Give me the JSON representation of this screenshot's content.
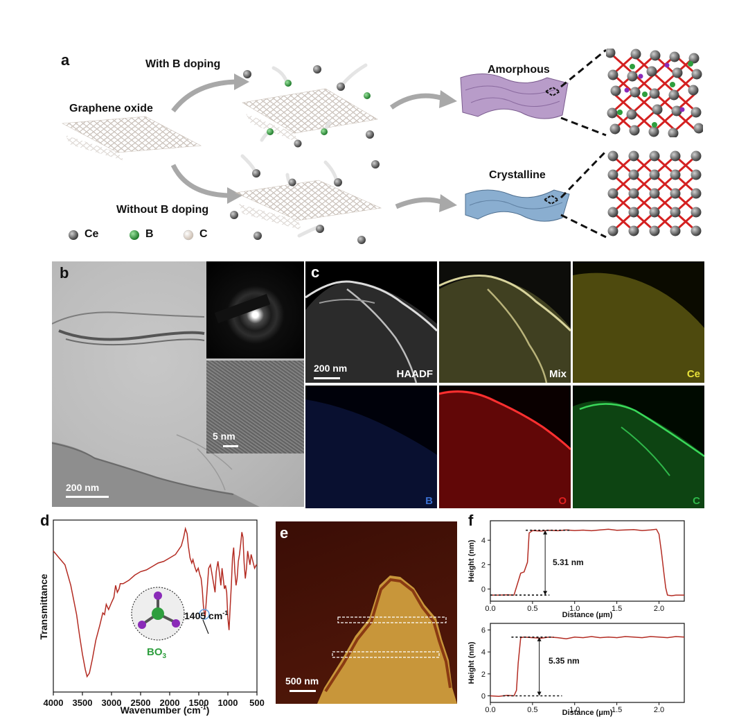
{
  "panel_a": {
    "label": "a",
    "with_b_doping": "With B doping",
    "without_b_doping": "Without B doping",
    "graphene_oxide": "Graphene oxide",
    "amorphous": "Amorphous",
    "crystalline": "Crystalline",
    "legend": [
      {
        "symbol": "Ce",
        "color": "#6b6b6b"
      },
      {
        "symbol": "B",
        "color": "#2e9e3e"
      },
      {
        "symbol": "C",
        "color": "#efe6dc"
      }
    ],
    "colors": {
      "amorphous_sheet": "#b89cc9",
      "crystalline_sheet": "#8aaed0"
    }
  },
  "panel_b": {
    "label": "b",
    "scalebar_main": "200 nm",
    "scalebar_inset": "5 nm"
  },
  "panel_c": {
    "label": "c",
    "scalebar": "200 nm",
    "maps": [
      {
        "name": "HAADF",
        "color": "#ffffff"
      },
      {
        "name": "Mix",
        "color": "#ffffff"
      },
      {
        "name": "Ce",
        "color": "#e8e23a"
      },
      {
        "name": "B",
        "color": "#3a6fd0"
      },
      {
        "name": "O",
        "color": "#e02020"
      },
      {
        "name": "C",
        "color": "#2fb84a"
      }
    ]
  },
  "panel_d": {
    "label": "d",
    "annotation": "1405 cm",
    "annotation_sup": "-1",
    "molecule_label": "BO",
    "molecule_sub": "3",
    "chart_data": {
      "type": "line",
      "xlabel": "Wavenumber (cm",
      "xlabel_sup": "-1",
      "xlabel_end": ")",
      "ylabel": "Transmittance",
      "xlim": [
        4000,
        500
      ],
      "xticks": [
        4000,
        3500,
        3000,
        2500,
        2000,
        1500,
        1000,
        500
      ],
      "series": [
        {
          "color": "#b32b22",
          "x": [
            4000,
            3900,
            3800,
            3700,
            3600,
            3550,
            3500,
            3450,
            3420,
            3380,
            3330,
            3270,
            3200,
            3150,
            3120,
            3090,
            3050,
            3000,
            2960,
            2930,
            2900,
            2870,
            2850,
            2800,
            2700,
            2600,
            2500,
            2400,
            2300,
            2200,
            2100,
            2000,
            1900,
            1800,
            1760,
            1730,
            1700,
            1680,
            1650,
            1620,
            1600,
            1570,
            1540,
            1510,
            1480,
            1460,
            1440,
            1420,
            1405,
            1390,
            1360,
            1330,
            1300,
            1280,
            1250,
            1220,
            1200,
            1170,
            1140,
            1120,
            1100,
            1080,
            1060,
            1040,
            1020,
            1000,
            980,
            960,
            940,
            920,
            900,
            880,
            860,
            840,
            820,
            800,
            780,
            760,
            740,
            720,
            700,
            680,
            660,
            640,
            620,
            600,
            570,
            540,
            510,
            500
          ],
          "y": [
            0.82,
            0.78,
            0.74,
            0.62,
            0.45,
            0.33,
            0.22,
            0.13,
            0.09,
            0.11,
            0.19,
            0.3,
            0.39,
            0.46,
            0.45,
            0.51,
            0.48,
            0.52,
            0.55,
            0.62,
            0.58,
            0.6,
            0.63,
            0.63,
            0.65,
            0.68,
            0.7,
            0.71,
            0.73,
            0.75,
            0.76,
            0.78,
            0.8,
            0.85,
            0.9,
            0.95,
            0.92,
            0.85,
            0.78,
            0.75,
            0.77,
            0.73,
            0.7,
            0.72,
            0.68,
            0.66,
            0.6,
            0.5,
            0.46,
            0.44,
            0.58,
            0.72,
            0.74,
            0.7,
            0.64,
            0.58,
            0.7,
            0.76,
            0.68,
            0.62,
            0.72,
            0.66,
            0.6,
            0.62,
            0.58,
            0.43,
            0.36,
            0.5,
            0.62,
            0.78,
            0.84,
            0.7,
            0.62,
            0.66,
            0.76,
            0.8,
            0.86,
            0.93,
            0.9,
            0.75,
            0.66,
            0.72,
            0.82,
            0.78,
            0.74,
            0.8,
            0.76,
            0.72,
            0.74,
            0.74
          ]
        }
      ]
    }
  },
  "panel_e": {
    "label": "e",
    "scalebar": "500 nm"
  },
  "panel_f": {
    "label": "f",
    "charts": [
      {
        "type": "line",
        "xlabel": "Distance (μm)",
        "ylabel": "Height (nm)",
        "annotation": "5.31 nm",
        "xlim": [
          0.0,
          2.3
        ],
        "ylim": [
          -1,
          5.6
        ],
        "xticks": [
          0.0,
          0.5,
          1.0,
          1.5,
          2.0
        ],
        "yticks": [
          0,
          2,
          4
        ],
        "series": [
          {
            "color": "#b32b22",
            "x": [
              0.0,
              0.1,
              0.2,
              0.28,
              0.32,
              0.36,
              0.4,
              0.44,
              0.46,
              0.5,
              0.6,
              0.7,
              0.8,
              0.9,
              1.0,
              1.1,
              1.2,
              1.3,
              1.4,
              1.5,
              1.6,
              1.7,
              1.8,
              1.9,
              1.97,
              2.0,
              2.03,
              2.06,
              2.08,
              2.1,
              2.15,
              2.2,
              2.3
            ],
            "y": [
              -0.5,
              -0.5,
              -0.48,
              -0.5,
              0.4,
              1.3,
              1.4,
              2.2,
              4.6,
              4.8,
              4.75,
              4.82,
              4.78,
              4.85,
              4.8,
              4.83,
              4.78,
              4.85,
              4.9,
              4.82,
              4.85,
              4.88,
              4.8,
              4.85,
              4.9,
              4.5,
              3.0,
              1.2,
              0.1,
              -0.5,
              -0.55,
              -0.5,
              -0.5
            ]
          }
        ]
      },
      {
        "type": "line",
        "xlabel": "Distance (μm)",
        "ylabel": "Height (nm)",
        "annotation": "5.35 nm",
        "xlim": [
          0.0,
          2.3
        ],
        "ylim": [
          -0.6,
          6.6
        ],
        "xticks": [
          0.0,
          0.5,
          1.0,
          1.5,
          2.0
        ],
        "yticks": [
          0,
          2,
          4,
          6
        ],
        "series": [
          {
            "color": "#b32b22",
            "x": [
              0.0,
              0.1,
              0.2,
              0.28,
              0.31,
              0.33,
              0.36,
              0.4,
              0.5,
              0.6,
              0.7,
              0.8,
              0.9,
              1.0,
              1.1,
              1.2,
              1.3,
              1.4,
              1.5,
              1.6,
              1.7,
              1.8,
              1.9,
              2.0,
              2.1,
              2.2,
              2.3
            ],
            "y": [
              0.0,
              -0.05,
              0.05,
              0.0,
              0.5,
              3.0,
              5.3,
              5.35,
              5.3,
              5.25,
              5.35,
              5.3,
              5.2,
              5.35,
              5.3,
              5.4,
              5.3,
              5.35,
              5.3,
              5.4,
              5.35,
              5.3,
              5.4,
              5.35,
              5.3,
              5.4,
              5.35
            ]
          }
        ]
      }
    ]
  }
}
